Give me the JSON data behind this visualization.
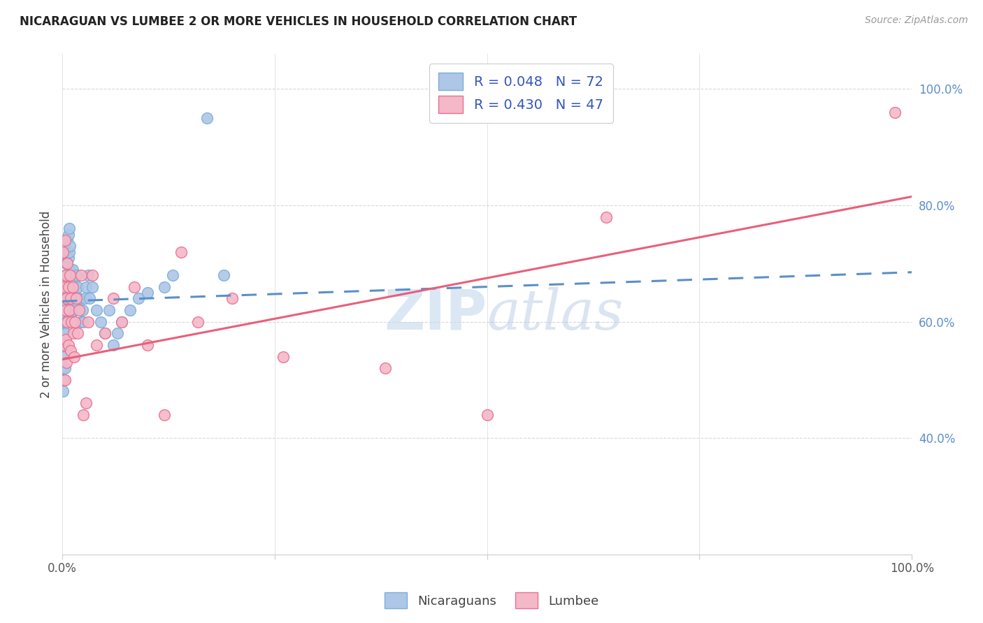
{
  "title": "NICARAGUAN VS LUMBEE 2 OR MORE VEHICLES IN HOUSEHOLD CORRELATION CHART",
  "source": "Source: ZipAtlas.com",
  "ylabel": "2 or more Vehicles in Household",
  "color_nicaraguan": "#aec6e8",
  "color_lumbee": "#f4b8c8",
  "color_nicaraguan_edge": "#7aafd4",
  "color_lumbee_edge": "#e87090",
  "color_nicaraguan_line": "#5b8fc9",
  "color_lumbee_line": "#e8607a",
  "watermark_color": "#c5d8ee",
  "background_color": "#ffffff",
  "grid_color": "#d8d8d8",
  "ytick_color": "#5b8fc9",
  "xtick_color": "#555555",
  "title_color": "#222222",
  "source_color": "#999999",
  "legend_label_color": "#3355bb",
  "ylabel_color": "#444444",
  "legend_r1": "R = 0.048",
  "legend_n1": "N = 72",
  "legend_r2": "R = 0.430",
  "legend_n2": "N = 47",
  "bottom_legend_1": "Nicaraguans",
  "bottom_legend_2": "Lumbee",
  "nicaraguan_x": [
    0.001,
    0.001,
    0.001,
    0.001,
    0.001,
    0.002,
    0.002,
    0.002,
    0.002,
    0.002,
    0.003,
    0.003,
    0.003,
    0.003,
    0.003,
    0.004,
    0.004,
    0.004,
    0.004,
    0.005,
    0.005,
    0.005,
    0.005,
    0.006,
    0.006,
    0.006,
    0.006,
    0.007,
    0.007,
    0.007,
    0.008,
    0.008,
    0.008,
    0.009,
    0.009,
    0.01,
    0.01,
    0.011,
    0.011,
    0.012,
    0.012,
    0.013,
    0.013,
    0.014,
    0.015,
    0.016,
    0.017,
    0.018,
    0.019,
    0.02,
    0.022,
    0.024,
    0.025,
    0.027,
    0.028,
    0.03,
    0.032,
    0.035,
    0.04,
    0.045,
    0.05,
    0.055,
    0.06,
    0.065,
    0.07,
    0.08,
    0.09,
    0.1,
    0.12,
    0.13,
    0.17,
    0.19
  ],
  "nicaraguan_y": [
    0.64,
    0.59,
    0.56,
    0.52,
    0.48,
    0.66,
    0.61,
    0.58,
    0.54,
    0.5,
    0.68,
    0.63,
    0.6,
    0.56,
    0.52,
    0.7,
    0.66,
    0.62,
    0.58,
    0.72,
    0.68,
    0.64,
    0.6,
    0.74,
    0.7,
    0.66,
    0.62,
    0.75,
    0.71,
    0.67,
    0.76,
    0.72,
    0.68,
    0.73,
    0.69,
    0.65,
    0.61,
    0.67,
    0.63,
    0.69,
    0.65,
    0.66,
    0.62,
    0.67,
    0.63,
    0.68,
    0.64,
    0.66,
    0.63,
    0.64,
    0.6,
    0.62,
    0.6,
    0.64,
    0.66,
    0.68,
    0.64,
    0.66,
    0.62,
    0.6,
    0.58,
    0.62,
    0.56,
    0.58,
    0.6,
    0.62,
    0.64,
    0.65,
    0.66,
    0.68,
    0.95,
    0.68
  ],
  "lumbee_x": [
    0.001,
    0.001,
    0.002,
    0.002,
    0.003,
    0.003,
    0.003,
    0.004,
    0.004,
    0.005,
    0.005,
    0.006,
    0.006,
    0.007,
    0.007,
    0.008,
    0.009,
    0.01,
    0.01,
    0.011,
    0.012,
    0.013,
    0.014,
    0.015,
    0.016,
    0.018,
    0.02,
    0.022,
    0.025,
    0.028,
    0.03,
    0.035,
    0.04,
    0.05,
    0.06,
    0.07,
    0.085,
    0.1,
    0.12,
    0.14,
    0.16,
    0.2,
    0.26,
    0.38,
    0.5,
    0.64,
    0.98
  ],
  "lumbee_y": [
    0.72,
    0.5,
    0.66,
    0.56,
    0.74,
    0.62,
    0.5,
    0.68,
    0.57,
    0.64,
    0.53,
    0.7,
    0.6,
    0.66,
    0.56,
    0.62,
    0.68,
    0.64,
    0.55,
    0.6,
    0.66,
    0.58,
    0.54,
    0.6,
    0.64,
    0.58,
    0.62,
    0.68,
    0.44,
    0.46,
    0.6,
    0.68,
    0.56,
    0.58,
    0.64,
    0.6,
    0.66,
    0.56,
    0.44,
    0.72,
    0.6,
    0.64,
    0.54,
    0.52,
    0.44,
    0.78,
    0.96
  ],
  "xmin": 0.0,
  "xmax": 1.0,
  "ymin": 0.2,
  "ymax": 1.06,
  "nic_line_x0": 0.0,
  "nic_line_x1": 1.0,
  "nic_line_y0": 0.635,
  "nic_line_y1": 0.685,
  "lum_line_x0": 0.0,
  "lum_line_x1": 1.0,
  "lum_line_y0": 0.535,
  "lum_line_y1": 0.815
}
